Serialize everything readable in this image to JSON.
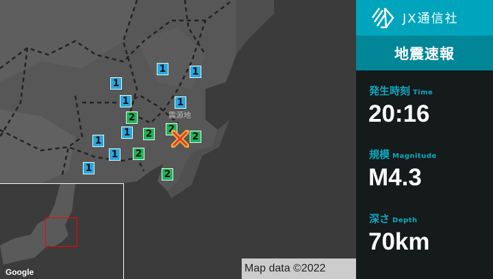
{
  "brand": {
    "name": "JX通信社",
    "logo_icon": "jx-logo-icon"
  },
  "panel": {
    "title": "地震速報",
    "time": {
      "label": "発生時刻",
      "label_en": "Time",
      "value": "20:16"
    },
    "magnitude": {
      "label": "規模",
      "label_en": "Magnitude",
      "value": "M4.3"
    },
    "depth": {
      "label": "深さ",
      "label_en": "Depth",
      "value": "70km"
    }
  },
  "map": {
    "epicenter_label": "震源地",
    "markers": [
      "1",
      "1",
      "1",
      "1",
      "1",
      "1",
      "1",
      "1",
      "1",
      "2",
      "2",
      "2",
      "2",
      "2",
      "2"
    ],
    "colors": {
      "intensity_1": "#2aa6e0",
      "intensity_2": "#1fb35a",
      "epicenter": "#e53935",
      "accent": "#00a5bd"
    },
    "inset_logo": "Google",
    "attribution": "Map data ©2022"
  }
}
